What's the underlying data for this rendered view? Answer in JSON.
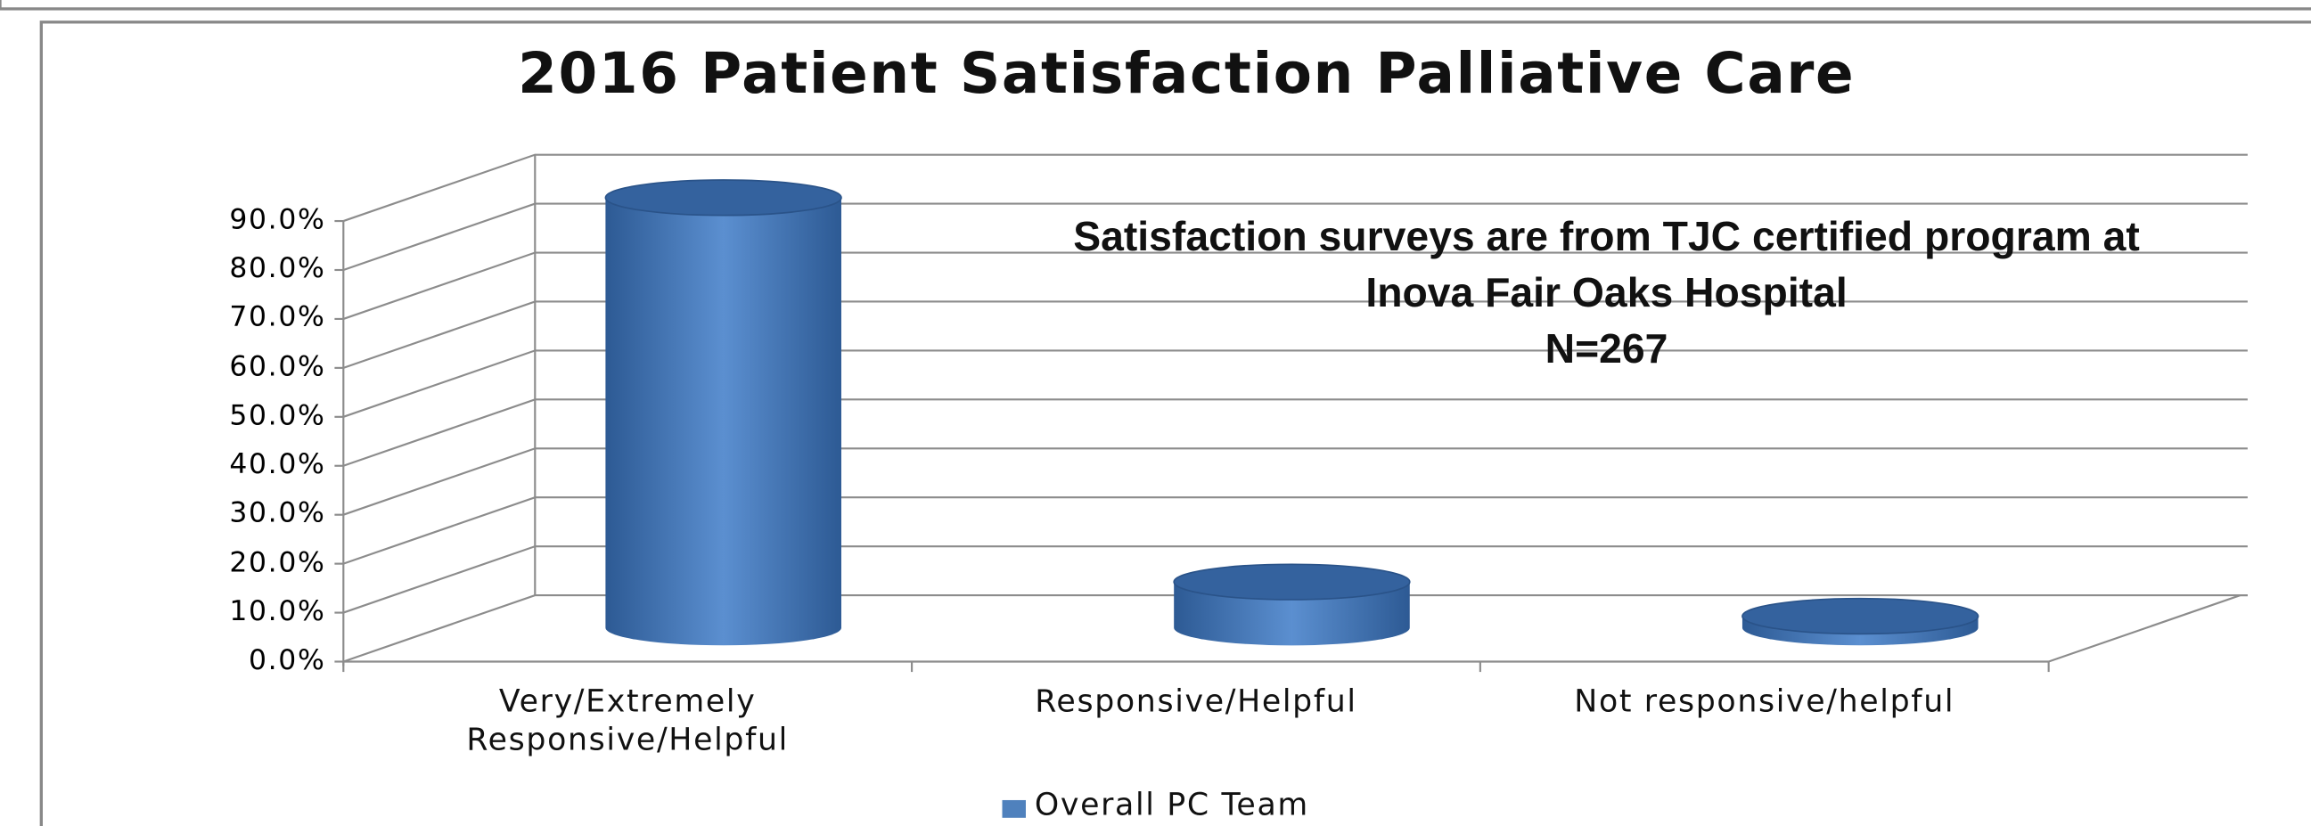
{
  "chart_data": {
    "type": "bar",
    "title": "2016 Patient Satisfaction Palliative Care",
    "annotation": [
      "Satisfaction surveys are from TJC certified program at",
      "Inova Fair Oaks Hospital",
      "N=267"
    ],
    "categories": [
      "Very/Extremely Responsive/Helpful",
      "Responsive/Helpful",
      "Not responsive/helpful"
    ],
    "series": [
      {
        "name": "Overall PC Team",
        "color": "#4f81bd",
        "values": [
          88,
          9.5,
          2.5
        ]
      }
    ],
    "ylim": [
      0,
      90
    ],
    "yticks": [
      {
        "value": 0,
        "label": "0.0%"
      },
      {
        "value": 10,
        "label": "10.0%"
      },
      {
        "value": 20,
        "label": "20.0%"
      },
      {
        "value": 30,
        "label": "30.0%"
      },
      {
        "value": 40,
        "label": "40.0%"
      },
      {
        "value": 50,
        "label": "50.0%"
      },
      {
        "value": 60,
        "label": "60.0%"
      },
      {
        "value": 70,
        "label": "70.0%"
      },
      {
        "value": 80,
        "label": "80.0%"
      },
      {
        "value": 90,
        "label": "90.0%"
      }
    ],
    "grid": true,
    "legend": "bottom"
  }
}
